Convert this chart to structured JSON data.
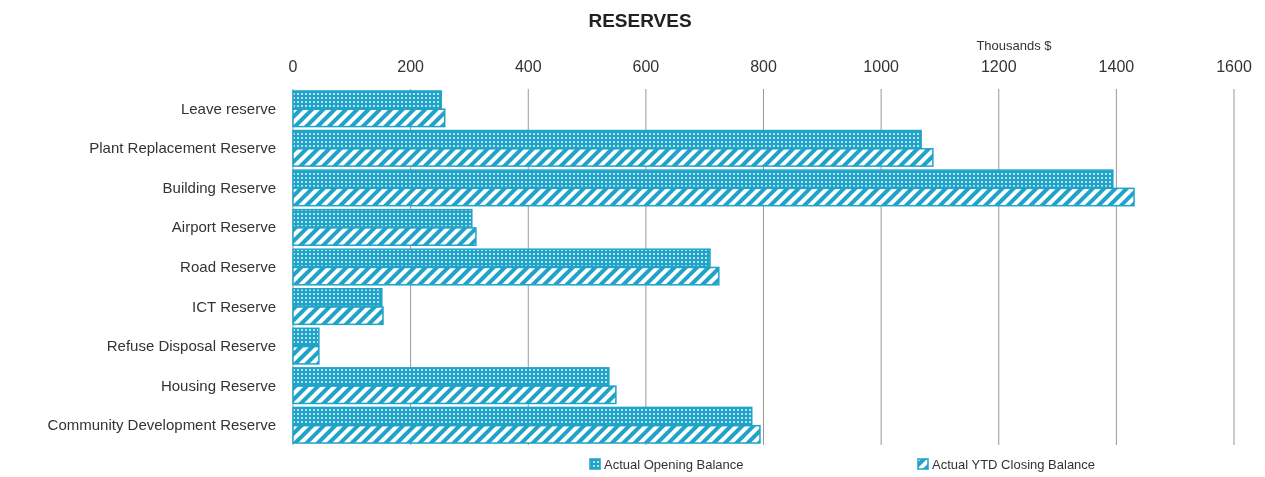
{
  "chart_data": {
    "type": "bar",
    "orientation": "horizontal",
    "title": "RESERVES",
    "xlabel": "Thousands $",
    "categories": [
      "Leave reserve",
      "Plant Replacement Reserve",
      "Building Reserve",
      "Airport Reserve",
      "Road Reserve",
      "ICT Reserve",
      "Refuse Disposal Reserve",
      "Housing Reserve",
      "Community Development Reserve"
    ],
    "series": [
      {
        "name": "Actual Opening Balance",
        "color": "#1fa3c9",
        "values": [
          252,
          1068,
          1394,
          304,
          709,
          151,
          44,
          537,
          780
        ]
      },
      {
        "name": "Actual YTD Closing Balance",
        "color": "#1fa3c9",
        "values": [
          258,
          1088,
          1430,
          311,
          724,
          153,
          44,
          549,
          794
        ]
      }
    ],
    "xlim": [
      0,
      1600
    ],
    "xticks": [
      0,
      200,
      400,
      600,
      800,
      1000,
      1200,
      1400,
      1600
    ],
    "grid": "x",
    "legend": "bottom"
  }
}
